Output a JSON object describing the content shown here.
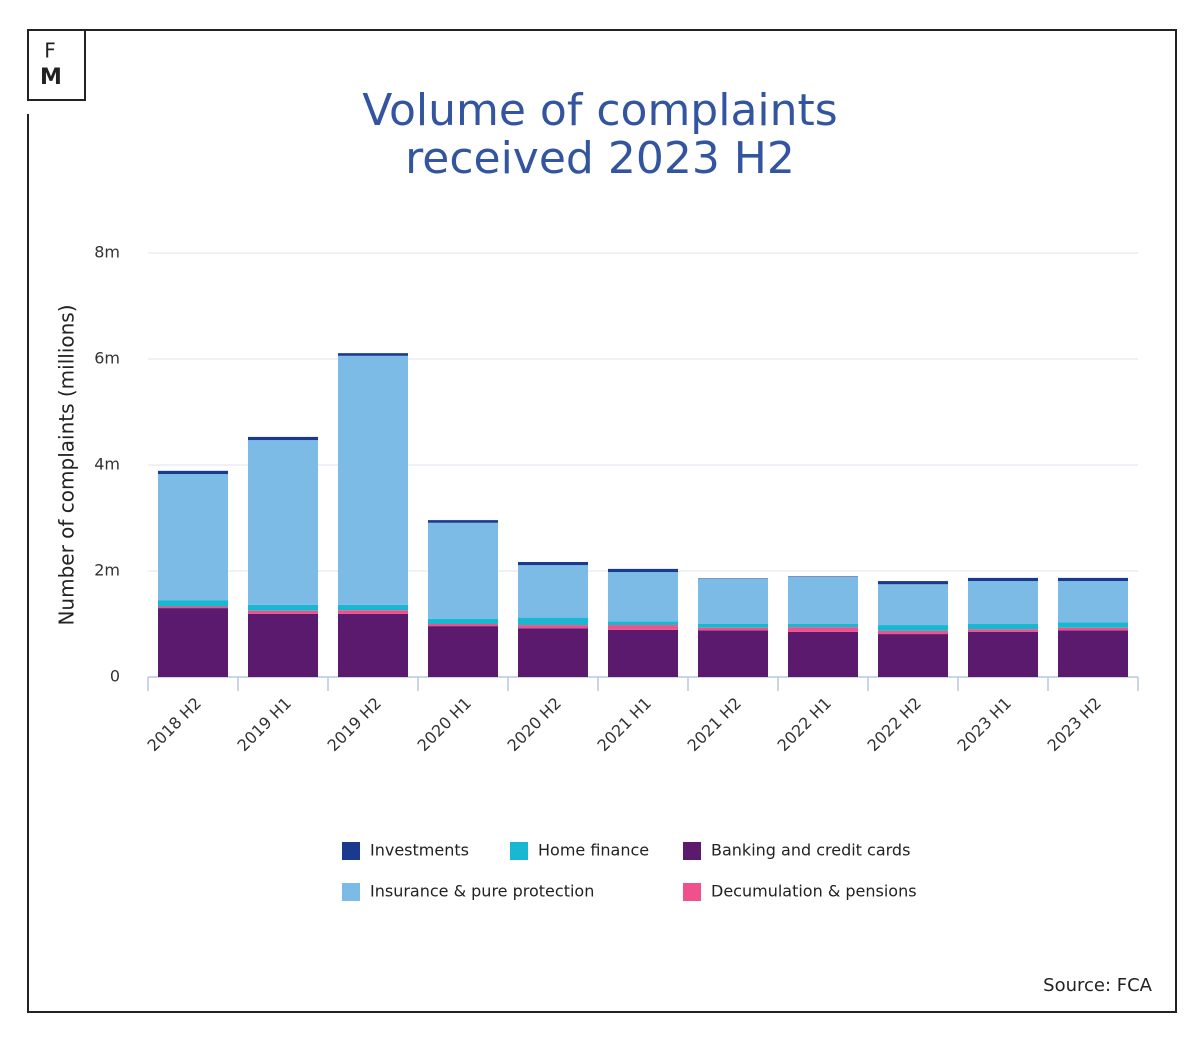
{
  "chart_data": {
    "type": "stacked-bar",
    "title": [
      "Volume of complaints",
      "received 2023 H2"
    ],
    "logo": [
      "F",
      "M"
    ],
    "y_label": "Number of complaints (millions)",
    "source": "Source: FCA",
    "categories": [
      "2018 H2",
      "2019 H1",
      "2019 H2",
      "2020 H1",
      "2020 H2",
      "2021 H1",
      "2021 H2",
      "2022 H1",
      "2022 H2",
      "2023 H1",
      "2023 H2"
    ],
    "series": [
      {
        "name": "Banking and credit cards",
        "color": "#5c1a6e",
        "values": [
          1.3,
          1.19,
          1.19,
          0.96,
          0.92,
          0.89,
          0.88,
          0.85,
          0.81,
          0.85,
          0.88
        ]
      },
      {
        "name": "Decumulation & pensions",
        "color": "#f0508c",
        "values": [
          0.03,
          0.06,
          0.07,
          0.04,
          0.06,
          0.09,
          0.05,
          0.09,
          0.06,
          0.05,
          0.05
        ]
      },
      {
        "name": "Home finance",
        "color": "#1ab8d0",
        "values": [
          0.12,
          0.11,
          0.1,
          0.1,
          0.14,
          0.07,
          0.07,
          0.06,
          0.11,
          0.1,
          0.1
        ]
      },
      {
        "name": "Insurance & pure protection",
        "color": "#7bbbe6",
        "values": [
          2.38,
          3.11,
          4.7,
          1.81,
          0.99,
          0.93,
          0.85,
          0.89,
          0.77,
          0.81,
          0.78
        ]
      },
      {
        "name": "Investments",
        "color": "#1a3a8f",
        "values": [
          0.06,
          0.06,
          0.05,
          0.05,
          0.06,
          0.06,
          0.01,
          0.01,
          0.06,
          0.06,
          0.06
        ]
      }
    ],
    "ylim": [
      0,
      8
    ],
    "yticks": [
      0,
      {
        "value": 2,
        "label": "2m"
      },
      {
        "value": 4,
        "label": "4m"
      },
      {
        "value": 6,
        "label": "6m"
      },
      {
        "value": 8,
        "label": "8m"
      }
    ],
    "grid": true
  }
}
